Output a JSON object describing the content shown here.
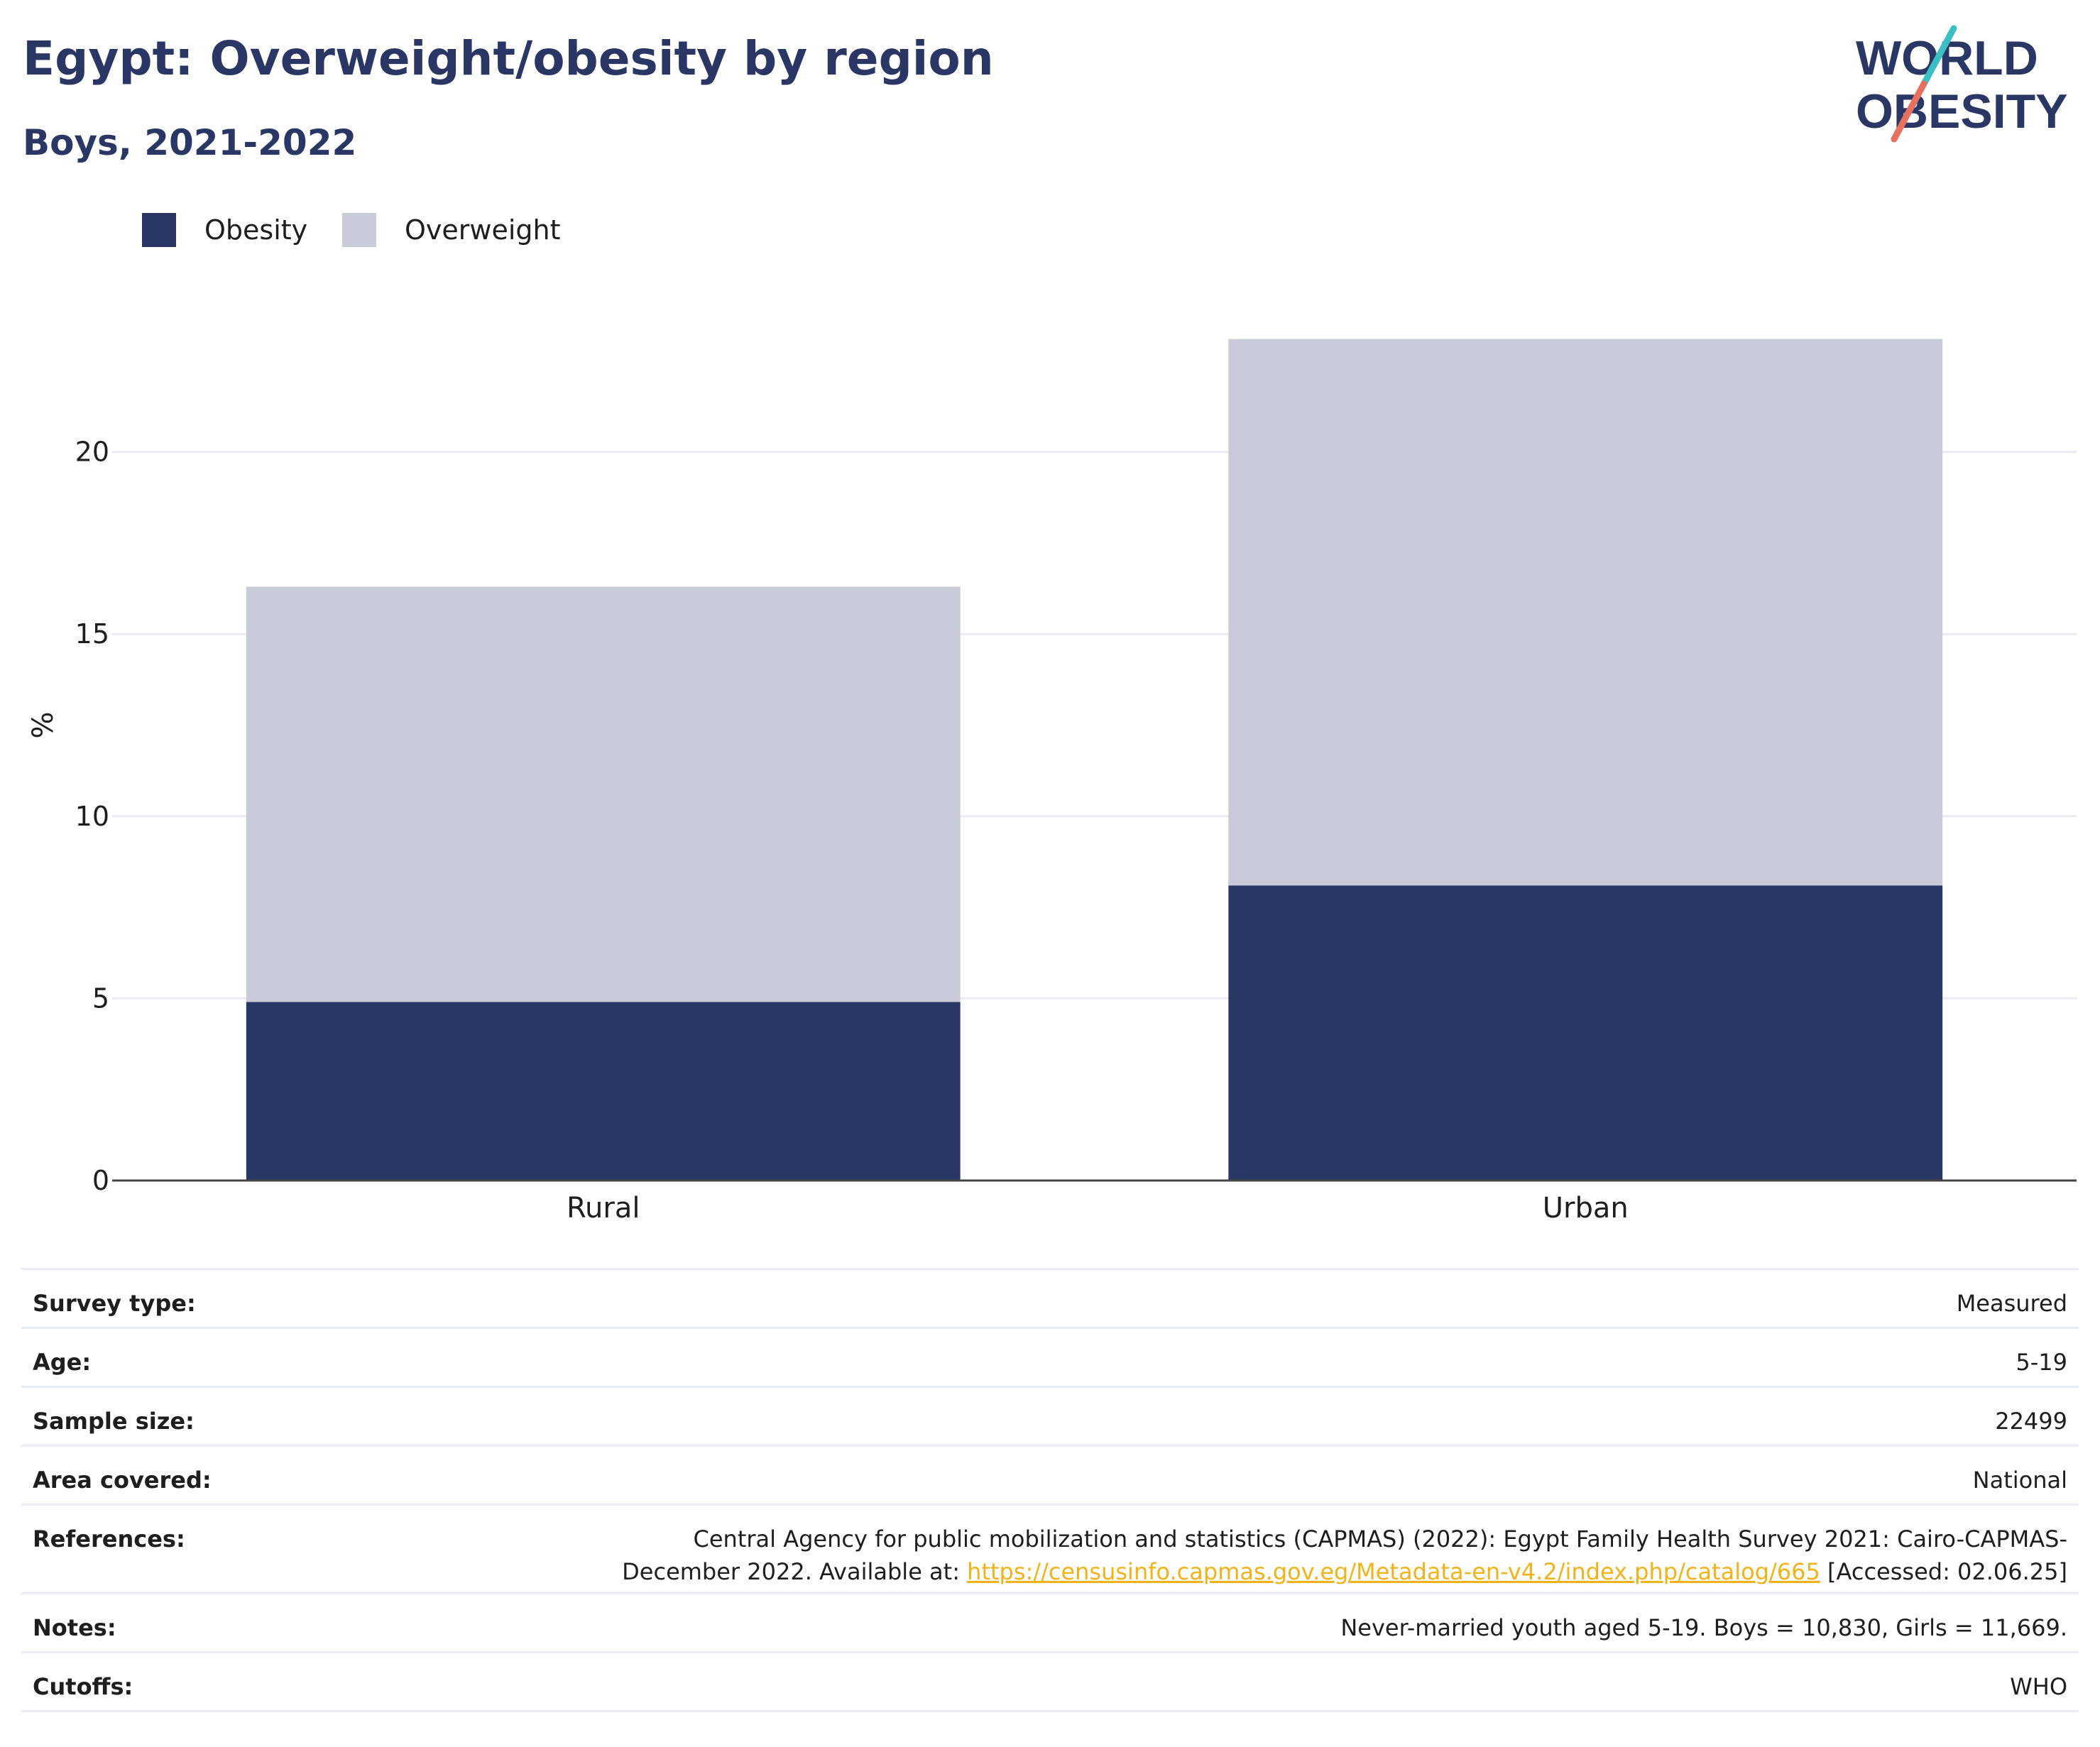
{
  "header": {
    "title": "Egypt: Overweight/obesity by region",
    "subtitle": "Boys, 2021-2022"
  },
  "logo": {
    "line1": "WORLD",
    "line2": "OBESITY",
    "colors": {
      "text": "#2a3764",
      "slash_top": "#3bbfc4",
      "slash_bottom": "#e8705f"
    }
  },
  "legend": [
    {
      "label": "Obesity",
      "color": "#2a3764"
    },
    {
      "label": "Overweight",
      "color": "#c9ccd8"
    }
  ],
  "chart_data": {
    "type": "bar",
    "stacked": true,
    "categories": [
      "Rural",
      "Urban"
    ],
    "series": [
      {
        "name": "Obesity",
        "values": [
          4.9,
          8.1
        ],
        "color": "#2a3764"
      },
      {
        "name": "Overweight",
        "values": [
          11.4,
          15.0
        ],
        "color": "#c9ccd8"
      }
    ],
    "title": "Egypt: Overweight/obesity by region",
    "subtitle": "Boys, 2021-2022",
    "xlabel": "",
    "ylabel": "%",
    "ylim": [
      0,
      25
    ],
    "yticks": [
      0,
      5,
      10,
      15,
      20
    ],
    "grid": true,
    "legend_position": "top-left"
  },
  "meta": {
    "rows": [
      {
        "label": "Survey type:",
        "value": "Measured"
      },
      {
        "label": "Age:",
        "value": "5-19"
      },
      {
        "label": "Sample size:",
        "value": "22499"
      },
      {
        "label": "Area covered:",
        "value": "National"
      }
    ],
    "references": {
      "label": "References:",
      "text_before": "Central Agency for public mobilization and statistics (CAPMAS) (2022): Egypt Family Health Survey 2021: Cairo-CAPMAS-December 2022. Available at: ",
      "link": "https://censusinfo.capmas.gov.eg/Metadata-en-v4.2/index.php/catalog/665",
      "text_after": " [Accessed: 02.06.25]"
    },
    "notes": {
      "label": "Notes:",
      "value": "Never-married youth aged 5-19. Boys = 10,830, Girls = 11,669."
    },
    "cutoffs": {
      "label": "Cutoffs:",
      "value": "WHO"
    }
  }
}
